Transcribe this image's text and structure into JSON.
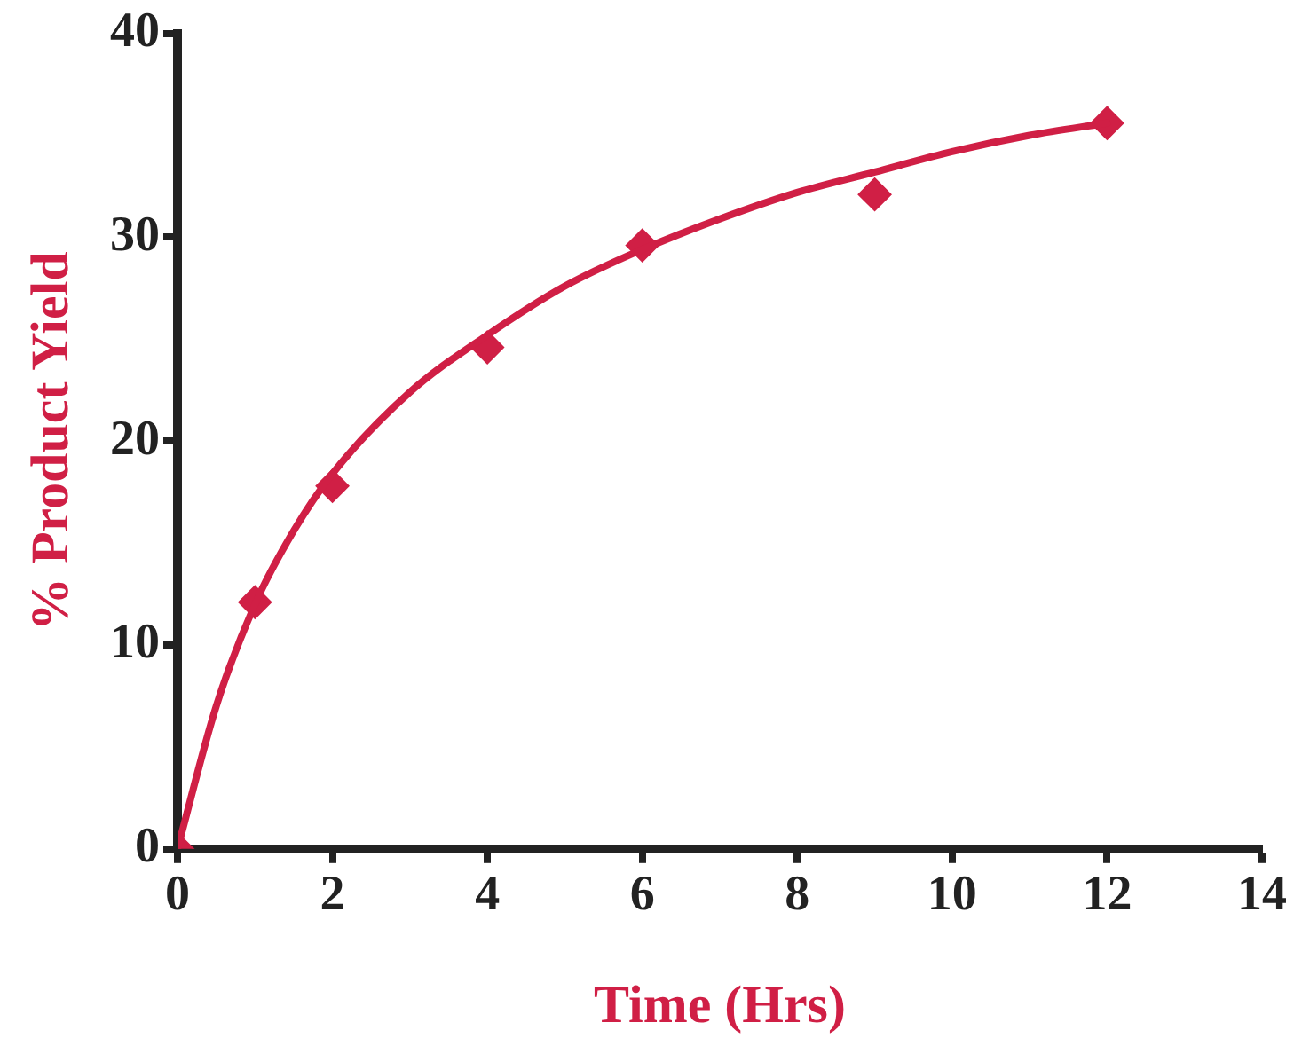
{
  "chart_data": {
    "type": "scatter",
    "xlabel": "Time (Hrs)",
    "ylabel": "% Product Yield",
    "xlim": [
      0,
      14
    ],
    "ylim": [
      0,
      40
    ],
    "xticks": [
      0,
      2,
      4,
      6,
      8,
      10,
      12,
      14
    ],
    "yticks": [
      0,
      10,
      20,
      30,
      40
    ],
    "grid": false,
    "legend": false,
    "series": [
      {
        "type": "line",
        "color": "#d01f45",
        "marker": "none",
        "x": [
          0,
          0.5,
          1,
          1.5,
          2,
          3,
          4,
          5,
          6,
          7,
          8,
          9,
          10,
          11,
          12
        ],
        "values": [
          0,
          7,
          12,
          15.6,
          18.4,
          22.4,
          25.2,
          27.6,
          29.4,
          30.9,
          32.2,
          33.2,
          34.2,
          35,
          35.6
        ]
      },
      {
        "type": "scatter",
        "color": "#d01f45",
        "marker": "diamond",
        "x": [
          0,
          1,
          2,
          4,
          6,
          9,
          12
        ],
        "values": [
          0,
          12.1,
          17.8,
          24.6,
          29.6,
          32.1,
          35.6
        ]
      }
    ]
  }
}
